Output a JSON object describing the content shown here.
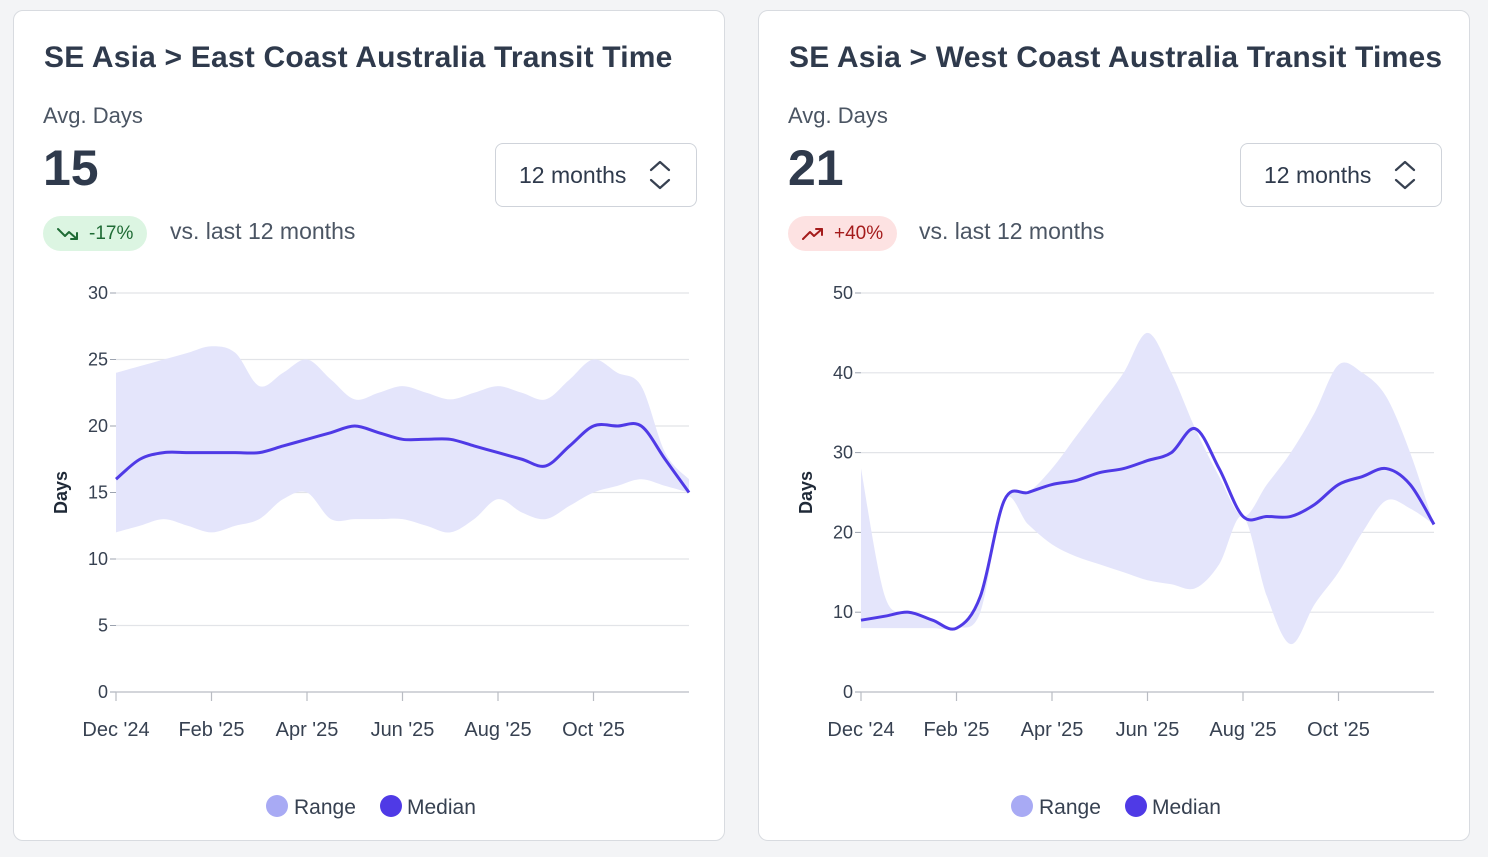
{
  "cards": [
    {
      "title": "SE Asia > East Coast Australia Transit Time",
      "metric_label": "Avg. Days",
      "metric_value": "15",
      "select_value": "12 months",
      "change": "-17%",
      "change_direction": "down",
      "compare_text": "vs. last 12 months",
      "chart_data": {
        "type": "area",
        "ylabel": "Days",
        "ylim": [
          0,
          30
        ],
        "yticks": [
          "0",
          "5",
          "10",
          "15",
          "20",
          "25",
          "30"
        ],
        "xlim": [
          0,
          12
        ],
        "xticks": [
          {
            "label": "Dec '24",
            "x": 0
          },
          {
            "label": "Feb '25",
            "x": 2
          },
          {
            "label": "Apr '25",
            "x": 4
          },
          {
            "label": "Jun '25",
            "x": 6
          },
          {
            "label": "Aug '25",
            "x": 8
          },
          {
            "label": "Oct '25",
            "x": 10
          }
        ],
        "grid": true,
        "legend_position": "bottom",
        "colors": {
          "range": "#e4e5fb",
          "median": "#4f3ae6",
          "range_legend": "#a8aaf4"
        },
        "series": [
          {
            "name": "Range",
            "x": [
              0,
              0.5,
              1,
              1.5,
              2,
              2.5,
              3,
              3.5,
              4,
              4.5,
              5,
              5.5,
              6,
              6.5,
              7,
              7.5,
              8,
              8.5,
              9,
              9.5,
              10,
              10.5,
              11,
              11.5,
              12
            ],
            "low": [
              12,
              12.5,
              13,
              12.5,
              12,
              12.5,
              13,
              14.5,
              15,
              13,
              13,
              13,
              13,
              12.5,
              12,
              13,
              14.5,
              13.5,
              13,
              14,
              15,
              15.5,
              16,
              15.5,
              15
            ],
            "high": [
              24,
              24.5,
              25,
              25.5,
              26,
              25.5,
              23,
              24,
              25,
              23.5,
              22,
              22.5,
              23,
              22.5,
              22,
              22.5,
              23,
              22.5,
              22,
              23.5,
              25,
              24,
              23,
              18,
              16
            ]
          },
          {
            "name": "Median",
            "x": [
              0,
              0.5,
              1,
              1.5,
              2,
              2.5,
              3,
              3.5,
              4,
              4.5,
              5,
              5.5,
              6,
              6.5,
              7,
              7.5,
              8,
              8.5,
              9,
              9.5,
              10,
              10.5,
              11,
              11.5,
              12
            ],
            "values": [
              16,
              17.5,
              18,
              18,
              18,
              18,
              18,
              18.5,
              19,
              19.5,
              20,
              19.5,
              19,
              19,
              19,
              18.5,
              18,
              17.5,
              17,
              18.5,
              20,
              20,
              20,
              17.5,
              15
            ]
          }
        ],
        "legend": [
          "Range",
          "Median"
        ]
      }
    },
    {
      "title": "SE Asia > West Coast Australia Transit Times",
      "metric_label": "Avg. Days",
      "metric_value": "21",
      "select_value": "12 months",
      "change": "+40%",
      "change_direction": "up",
      "compare_text": "vs. last 12 months",
      "chart_data": {
        "type": "area",
        "ylabel": "Days",
        "ylim": [
          0,
          50
        ],
        "yticks": [
          "0",
          "10",
          "20",
          "30",
          "40",
          "50"
        ],
        "xlim": [
          0,
          12
        ],
        "xticks": [
          {
            "label": "Dec '24",
            "x": 0
          },
          {
            "label": "Feb '25",
            "x": 2
          },
          {
            "label": "Apr '25",
            "x": 4
          },
          {
            "label": "Jun '25",
            "x": 6
          },
          {
            "label": "Aug '25",
            "x": 8
          },
          {
            "label": "Oct '25",
            "x": 10
          }
        ],
        "grid": true,
        "legend_position": "bottom",
        "colors": {
          "range": "#e4e5fb",
          "median": "#4f3ae6",
          "range_legend": "#a8aaf4"
        },
        "series": [
          {
            "name": "Range",
            "x": [
              0,
              0.5,
              1,
              1.5,
              2,
              2.5,
              3,
              3.5,
              4,
              4.5,
              5,
              5.5,
              6,
              6.5,
              7,
              7.5,
              8,
              8.5,
              9,
              9.5,
              10,
              10.5,
              11,
              11.5,
              12
            ],
            "low": [
              8,
              8,
              8,
              8,
              8,
              10,
              24,
              21,
              18.5,
              17,
              16,
              15,
              14,
              13.5,
              13,
              16,
              22,
              12,
              6,
              11,
              15,
              20,
              24,
              23,
              21
            ],
            "high": [
              28,
              12,
              10,
              9,
              8,
              12,
              24,
              25,
              28,
              32,
              36,
              40,
              45,
              40,
              33,
              27,
              22,
              26,
              30,
              35,
              41,
              40,
              37,
              30,
              21
            ]
          },
          {
            "name": "Median",
            "x": [
              0,
              0.5,
              1,
              1.5,
              2,
              2.5,
              3,
              3.5,
              4,
              4.5,
              5,
              5.5,
              6,
              6.5,
              7,
              7.5,
              8,
              8.5,
              9,
              9.5,
              10,
              10.5,
              11,
              11.5,
              12
            ],
            "values": [
              9,
              9.5,
              10,
              9,
              8,
              12,
              24,
              25,
              26,
              26.5,
              27.5,
              28,
              29,
              30,
              33,
              28,
              22,
              22,
              22,
              23.5,
              26,
              27,
              28,
              26,
              21
            ]
          }
        ],
        "legend": [
          "Range",
          "Median"
        ]
      }
    }
  ]
}
